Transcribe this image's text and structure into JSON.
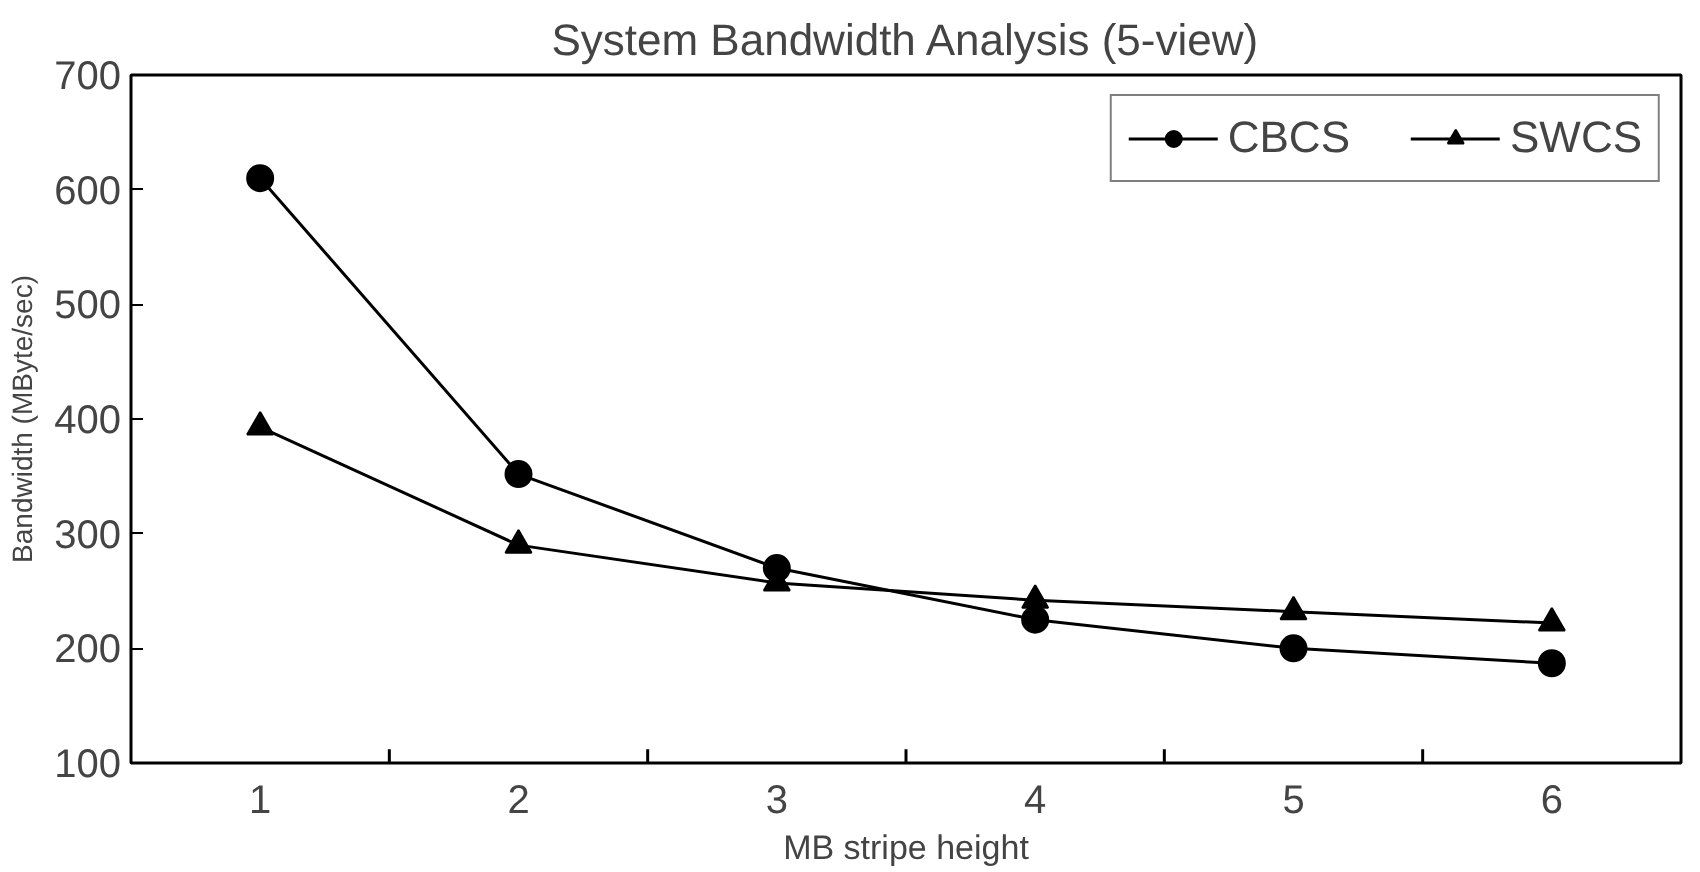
{
  "chart_data": {
    "type": "line",
    "title": "System Bandwidth Analysis (5-view)",
    "xlabel": "MB stripe height",
    "ylabel": "Bandwidth (MByte/sec)",
    "categories": [
      "1",
      "2",
      "3",
      "4",
      "5",
      "6"
    ],
    "series": [
      {
        "name": "CBCS",
        "color": "#000000",
        "marker": "circle",
        "values": [
          610,
          352,
          270,
          225,
          200,
          187
        ]
      },
      {
        "name": "SWCS",
        "color": "#000000",
        "marker": "triangle",
        "values": [
          393,
          290,
          257,
          242,
          232,
          222
        ]
      }
    ],
    "ylim": [
      100,
      700
    ],
    "yticks": [
      100,
      200,
      300,
      400,
      500,
      600,
      700
    ],
    "grid": false,
    "legend": "top right",
    "line_style": "solid"
  }
}
